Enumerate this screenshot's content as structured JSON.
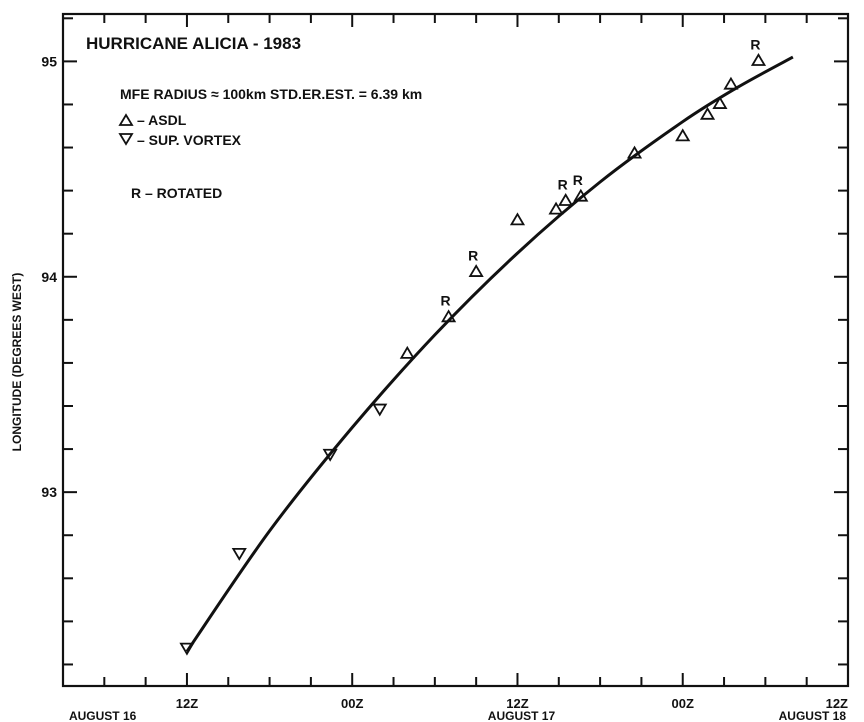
{
  "chart_data": {
    "type": "scatter",
    "title": "HURRICANE ALICIA - 1983",
    "annotations": {
      "mfe_line": "MFE RADIUS ≈ 100km  STD.ER.EST. = 6.39 km",
      "asdl_entry": "– ASDL",
      "vortex_entry": "– SUP. VORTEX",
      "rotated_entry": "R – ROTATED",
      "rotated_marker": "R"
    },
    "ylabel": "LONGITUDE (DEGREES WEST)",
    "xlabel": "",
    "x_unit": "hours from 00Z August 16",
    "xlim": [
      3,
      60
    ],
    "ylim": [
      92.1,
      95.22
    ],
    "x_ticks": [
      {
        "value": 12,
        "label": "12Z"
      },
      {
        "value": 24,
        "label": "00Z"
      },
      {
        "value": 36,
        "label": "12Z"
      },
      {
        "value": 48,
        "label": "00Z"
      },
      {
        "value": 60,
        "label": "12Z"
      }
    ],
    "x_date_labels": [
      {
        "value": 12,
        "label": "AUGUST 16"
      },
      {
        "value": 36,
        "label": "AUGUST 17"
      },
      {
        "value": 60,
        "label": "AUGUST 18"
      }
    ],
    "y_ticks": [
      {
        "value": 93,
        "label": "93"
      },
      {
        "value": 94,
        "label": "94"
      },
      {
        "value": 95,
        "label": "95"
      }
    ],
    "grid": false,
    "series": [
      {
        "name": "ASDL",
        "marker": "triangle-up",
        "points": [
          {
            "x": 28.0,
            "y": 93.64,
            "rotated": false
          },
          {
            "x": 31.0,
            "y": 93.81,
            "rotated": true
          },
          {
            "x": 33.0,
            "y": 94.02,
            "rotated": true
          },
          {
            "x": 36.0,
            "y": 94.26,
            "rotated": false
          },
          {
            "x": 38.8,
            "y": 94.31,
            "rotated": false
          },
          {
            "x": 39.5,
            "y": 94.35,
            "rotated": true
          },
          {
            "x": 40.6,
            "y": 94.37,
            "rotated": true
          },
          {
            "x": 44.5,
            "y": 94.57,
            "rotated": false
          },
          {
            "x": 48.0,
            "y": 94.65,
            "rotated": false
          },
          {
            "x": 49.8,
            "y": 94.75,
            "rotated": false
          },
          {
            "x": 50.7,
            "y": 94.8,
            "rotated": false
          },
          {
            "x": 51.5,
            "y": 94.89,
            "rotated": false
          },
          {
            "x": 53.5,
            "y": 95.0,
            "rotated": true
          }
        ]
      },
      {
        "name": "SUP. VORTEX",
        "marker": "triangle-down",
        "points": [
          {
            "x": 12.0,
            "y": 92.28
          },
          {
            "x": 15.8,
            "y": 92.72
          },
          {
            "x": 22.4,
            "y": 93.18
          },
          {
            "x": 26.0,
            "y": 93.39
          }
        ]
      }
    ],
    "fit_curve": {
      "label": "fitted track",
      "x": [
        12,
        18,
        24,
        30,
        36,
        42,
        48,
        52,
        56
      ],
      "y": [
        92.26,
        92.82,
        93.3,
        93.73,
        94.11,
        94.44,
        94.72,
        94.88,
        95.02
      ]
    }
  }
}
